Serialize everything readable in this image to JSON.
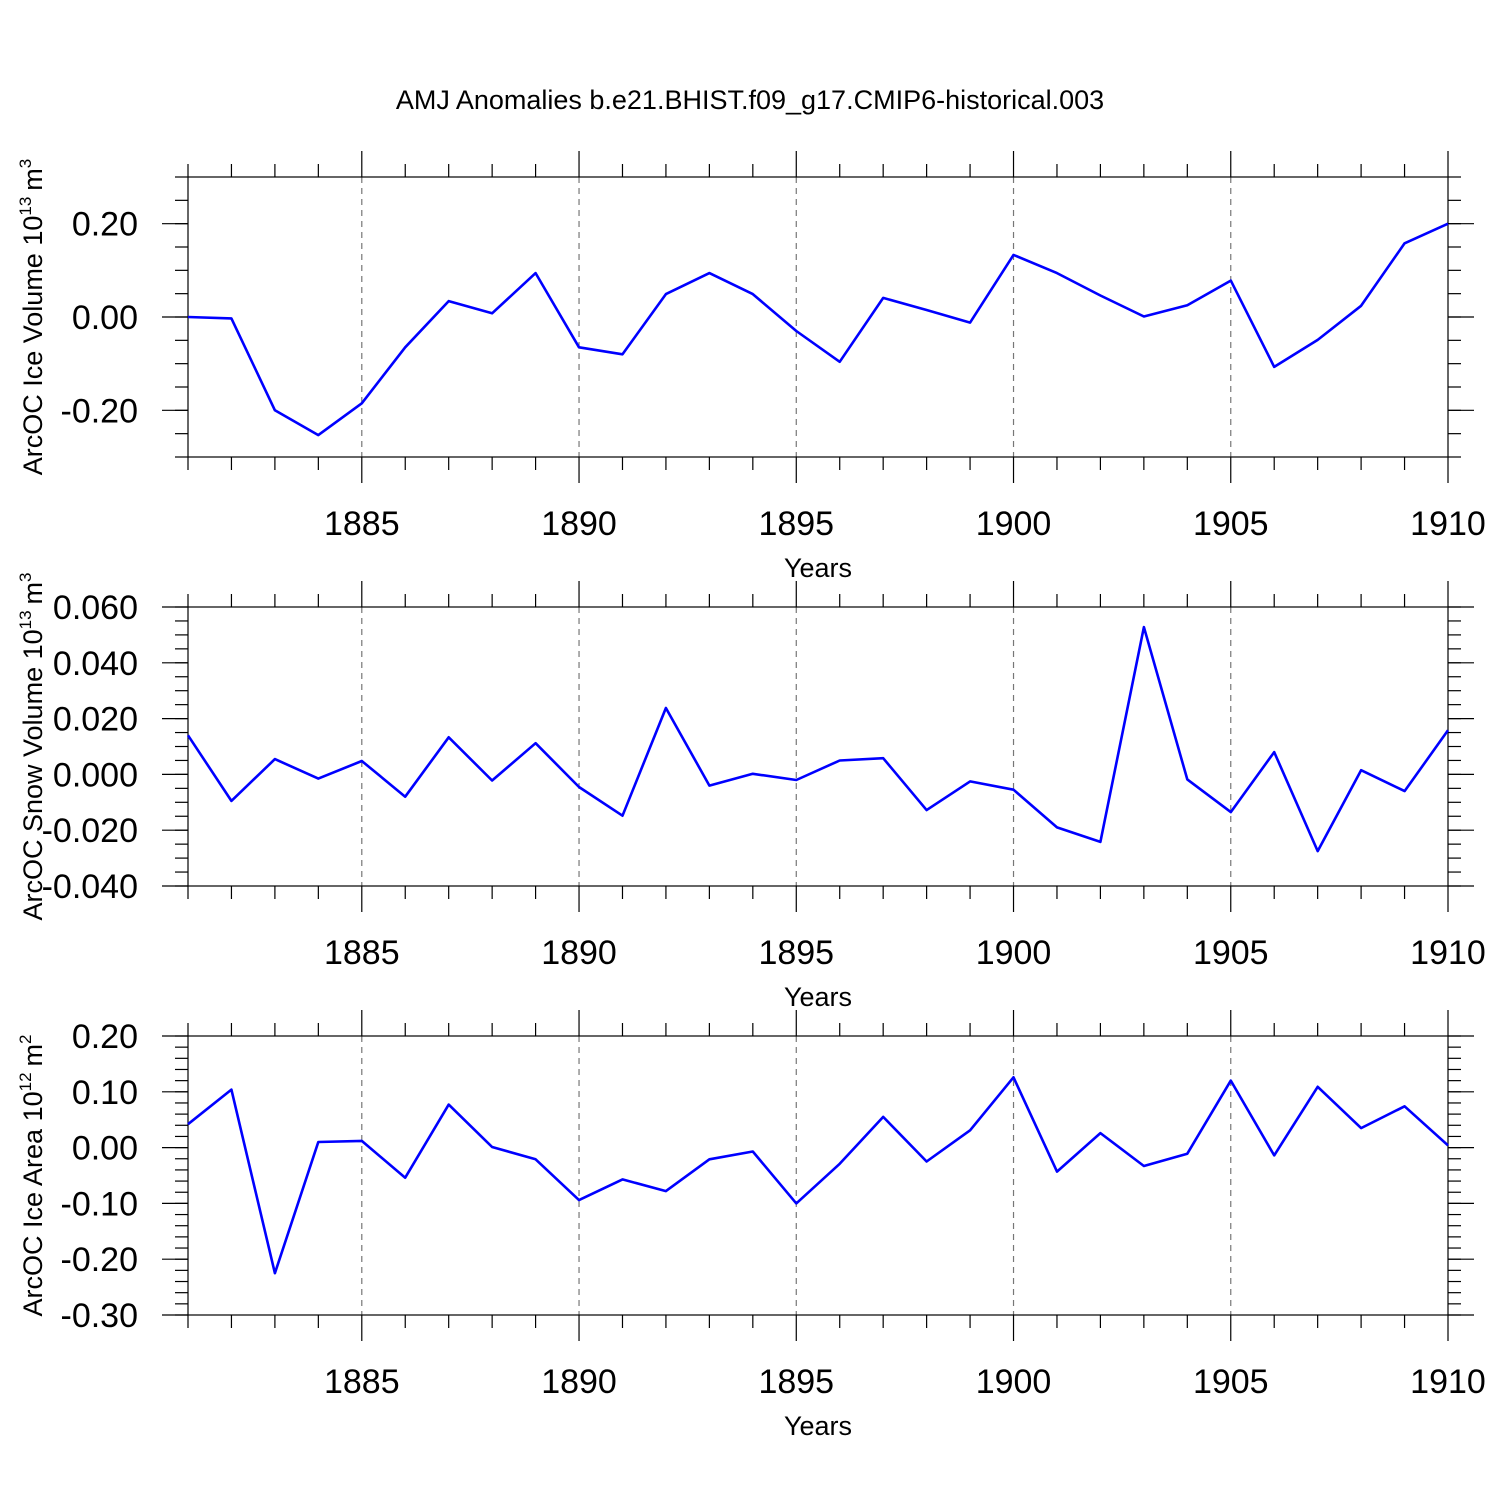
{
  "figure_title": "AMJ Anomalies b.e21.BHIST.f09_g17.CMIP6-historical.003",
  "chart_data": [
    {
      "type": "line",
      "title": "AMJ Anomalies b.e21.BHIST.f09_g17.CMIP6-historical.003",
      "xlabel": "Years",
      "ylabel": {
        "main": "ArcOC Ice Volume 10",
        "exp": "13",
        "unit": "m",
        "unit_exp": "3"
      },
      "x": [
        1881,
        1882,
        1883,
        1884,
        1885,
        1886,
        1887,
        1888,
        1889,
        1890,
        1891,
        1892,
        1893,
        1894,
        1895,
        1896,
        1897,
        1898,
        1899,
        1900,
        1901,
        1902,
        1903,
        1904,
        1905,
        1906,
        1907,
        1908,
        1909,
        1910
      ],
      "series": [
        {
          "name": "ArcOC Ice Volume",
          "color": "#0000ff",
          "values": [
            0.0,
            -0.003,
            -0.2,
            -0.253,
            -0.185,
            -0.065,
            0.034,
            0.008,
            0.094,
            -0.065,
            -0.08,
            0.049,
            0.094,
            0.049,
            -0.03,
            -0.096,
            0.041,
            0.015,
            -0.012,
            0.133,
            0.094,
            0.046,
            0.001,
            0.025,
            0.078,
            -0.107,
            -0.049,
            0.024,
            0.158,
            0.2
          ]
        }
      ],
      "xlim": [
        1881,
        1910
      ],
      "ylim": [
        -0.3,
        0.3
      ],
      "xticks": [
        1885,
        1890,
        1895,
        1900,
        1905,
        1910
      ],
      "xtick_labels": [
        "1885",
        "1890",
        "1895",
        "1900",
        "1905",
        "1910"
      ],
      "yticks": [
        -0.2,
        0.0,
        0.2
      ],
      "ytick_labels": [
        "-0.20",
        "0.00",
        "0.20"
      ],
      "yminor_step": 0.05,
      "grid": "dashed vertical at major x ticks"
    },
    {
      "type": "line",
      "xlabel": "Years",
      "ylabel": {
        "main": "ArcOC Snow Volume 10",
        "exp": "13",
        "unit": "m",
        "unit_exp": "3"
      },
      "x": [
        1881,
        1882,
        1883,
        1884,
        1885,
        1886,
        1887,
        1888,
        1889,
        1890,
        1891,
        1892,
        1893,
        1894,
        1895,
        1896,
        1897,
        1898,
        1899,
        1900,
        1901,
        1902,
        1903,
        1904,
        1905,
        1906,
        1907,
        1908,
        1909,
        1910
      ],
      "series": [
        {
          "name": "ArcOC Snow Volume",
          "color": "#0000ff",
          "values": [
            0.014,
            -0.0095,
            0.0055,
            -0.0015,
            0.0048,
            -0.008,
            0.0133,
            -0.0022,
            0.0112,
            -0.0045,
            -0.0148,
            0.0238,
            -0.004,
            0.0002,
            -0.002,
            0.005,
            0.0058,
            -0.0128,
            -0.0025,
            -0.0055,
            -0.019,
            -0.0242,
            0.0528,
            -0.0018,
            -0.0135,
            0.008,
            -0.0275,
            0.0015,
            -0.006,
            0.0158
          ]
        }
      ],
      "xlim": [
        1881,
        1910
      ],
      "ylim": [
        -0.04,
        0.06
      ],
      "xticks": [
        1885,
        1890,
        1895,
        1900,
        1905,
        1910
      ],
      "xtick_labels": [
        "1885",
        "1890",
        "1895",
        "1900",
        "1905",
        "1910"
      ],
      "yticks": [
        -0.04,
        -0.02,
        0.0,
        0.02,
        0.04,
        0.06
      ],
      "ytick_labels": [
        "-0.040",
        "-0.020",
        "0.000",
        "0.020",
        "0.040",
        "0.060"
      ],
      "yminor_step": 0.005,
      "grid": "dashed vertical at major x ticks"
    },
    {
      "type": "line",
      "xlabel": "Years",
      "ylabel": {
        "main": "ArcOC Ice Area 10",
        "exp": "12",
        "unit": "m",
        "unit_exp": "2"
      },
      "x": [
        1881,
        1882,
        1883,
        1884,
        1885,
        1886,
        1887,
        1888,
        1889,
        1890,
        1891,
        1892,
        1893,
        1894,
        1895,
        1896,
        1897,
        1898,
        1899,
        1900,
        1901,
        1902,
        1903,
        1904,
        1905,
        1906,
        1907,
        1908,
        1909,
        1910
      ],
      "series": [
        {
          "name": "ArcOC Ice Area",
          "color": "#0000ff",
          "values": [
            0.042,
            0.104,
            -0.225,
            0.01,
            0.012,
            -0.054,
            0.077,
            0.001,
            -0.021,
            -0.094,
            -0.057,
            -0.078,
            -0.021,
            -0.007,
            -0.1,
            -0.029,
            0.055,
            -0.025,
            0.031,
            0.126,
            -0.043,
            0.026,
            -0.033,
            -0.011,
            0.12,
            -0.014,
            0.109,
            0.035,
            0.074,
            0.004
          ]
        }
      ],
      "xlim": [
        1881,
        1910
      ],
      "ylim": [
        -0.3,
        0.2
      ],
      "xticks": [
        1885,
        1890,
        1895,
        1900,
        1905,
        1910
      ],
      "xtick_labels": [
        "1885",
        "1890",
        "1895",
        "1900",
        "1905",
        "1910"
      ],
      "yticks": [
        -0.3,
        -0.2,
        -0.1,
        0.0,
        0.1,
        0.2
      ],
      "ytick_labels": [
        "-0.30",
        "-0.20",
        "-0.10",
        "0.00",
        "0.10",
        "0.20"
      ],
      "yminor_step": 0.02,
      "grid": "dashed vertical at major x ticks"
    }
  ]
}
